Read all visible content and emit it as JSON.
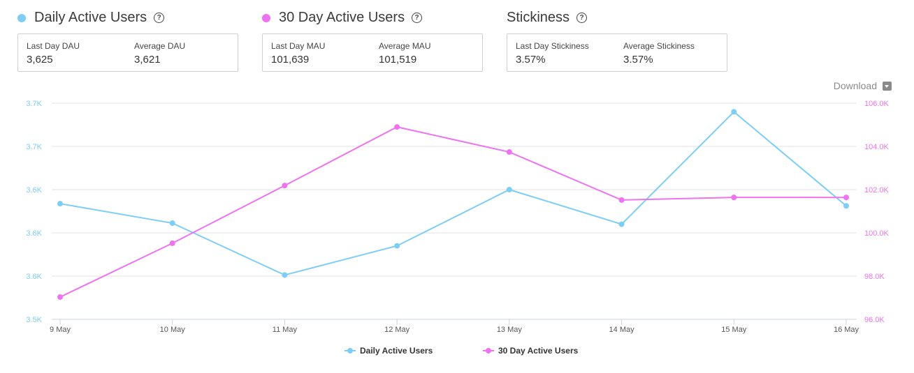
{
  "metrics": [
    {
      "title": "Daily Active Users",
      "color": "#7dcdf5",
      "help_icon": "question-circle-icon",
      "stats": [
        {
          "label": "Last Day DAU",
          "value": "3,625"
        },
        {
          "label": "Average DAU",
          "value": "3,621"
        }
      ]
    },
    {
      "title": "30 Day Active Users",
      "color": "#ee73ee",
      "help_icon": "question-circle-icon",
      "stats": [
        {
          "label": "Last Day MAU",
          "value": "101,639"
        },
        {
          "label": "Average MAU",
          "value": "101,519"
        }
      ]
    },
    {
      "title": "Stickiness",
      "color": null,
      "help_icon": "question-circle-icon",
      "stats": [
        {
          "label": "Last Day Stickiness",
          "value": "3.57%"
        },
        {
          "label": "Average Stickiness",
          "value": "3.57%"
        }
      ]
    }
  ],
  "help_glyph": "?",
  "download": {
    "label": "Download",
    "icon": "caret-down-icon"
  },
  "chart_data": {
    "type": "line",
    "title": "",
    "xlabel": "",
    "categories": [
      "9 May",
      "10 May",
      "11 May",
      "12 May",
      "13 May",
      "14 May",
      "15 May",
      "16 May"
    ],
    "series": [
      {
        "name": "Daily Active Users",
        "axis": "left",
        "color": "#7dcdf5",
        "values": [
          3627,
          3609,
          3561,
          3588,
          3640,
          3608,
          3712,
          3625
        ]
      },
      {
        "name": "30 Day Active Users",
        "axis": "right",
        "color": "#ee73ee",
        "values": [
          97030,
          99520,
          102190,
          104900,
          103740,
          101520,
          101640,
          101639
        ]
      }
    ],
    "y_left": {
      "range": [
        3520,
        3720
      ],
      "ticks": [
        3520,
        3560,
        3600,
        3640,
        3680,
        3720
      ],
      "tick_labels": [
        "3.5K",
        "3.6K",
        "3.6K",
        "3.6K",
        "3.7K",
        "3.7K"
      ],
      "color": "#7dcdf5"
    },
    "y_right": {
      "range": [
        96000,
        106000
      ],
      "ticks": [
        96000,
        98000,
        100000,
        102000,
        104000,
        106000
      ],
      "tick_labels": [
        "96.0K",
        "98.0K",
        "100.0K",
        "102.0K",
        "104.0K",
        "106.0K"
      ],
      "color": "#ee73ee"
    },
    "grid": true,
    "legend_position": "bottom-center"
  }
}
